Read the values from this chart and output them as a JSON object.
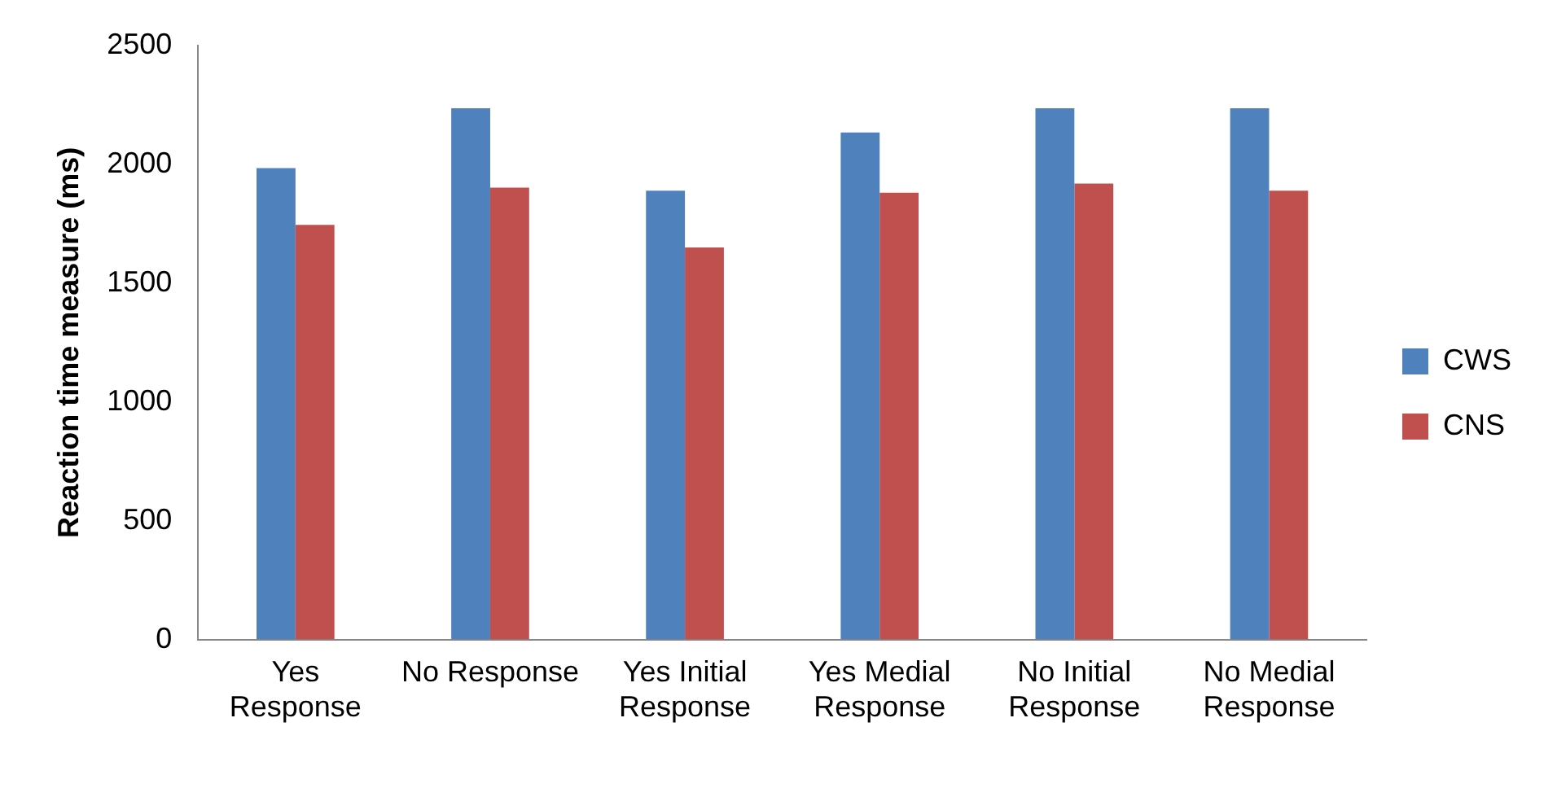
{
  "chart_data": {
    "type": "bar",
    "ylabel": "Reaction time measure (ms)",
    "categories": [
      "Yes Response",
      "No Response",
      "Yes Initial Response",
      "Yes Medial Response",
      "No Initial Response",
      "No Medial Response"
    ],
    "series": [
      {
        "name": "CWS",
        "color": "#4f81bd",
        "values": [
          1984,
          2236,
          1889,
          2134,
          2236,
          2236
        ]
      },
      {
        "name": "CNS",
        "color": "#c0504d",
        "values": [
          1745,
          1902,
          1650,
          1881,
          1919,
          1889
        ]
      }
    ],
    "ylim": [
      0,
      2500
    ],
    "yticks": [
      0,
      500,
      1000,
      1500,
      2000,
      2500
    ],
    "grid": false,
    "legend": "right"
  }
}
